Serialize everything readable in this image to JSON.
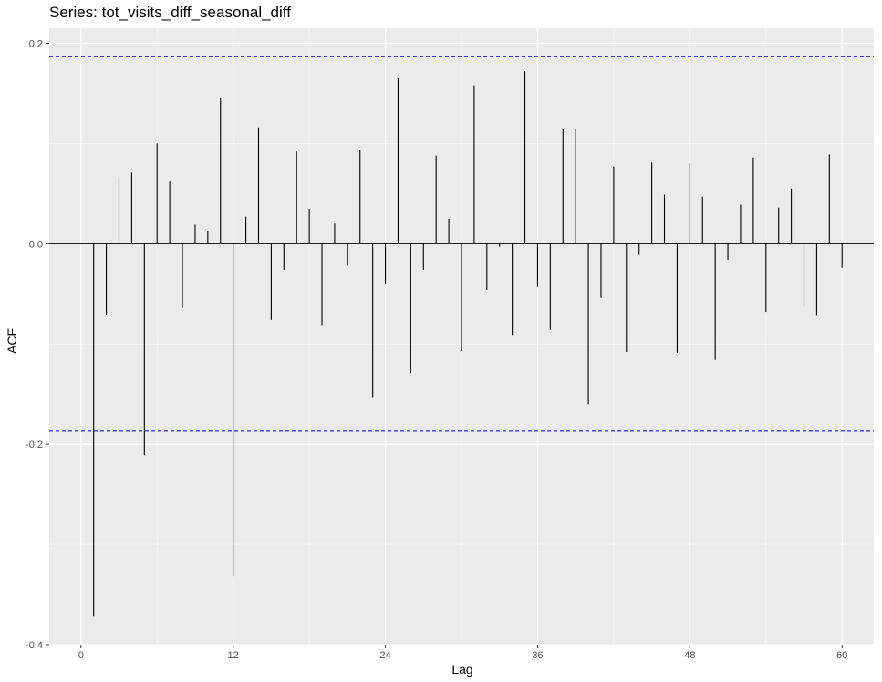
{
  "chart_data": {
    "type": "bar",
    "title": "Series: tot_visits_diff_seasonal_diff",
    "xlabel": "Lag",
    "ylabel": "ACF",
    "xlim": [
      -2.5,
      62.5
    ],
    "ylim": [
      -0.4,
      0.215
    ],
    "x_ticks": [
      0,
      12,
      24,
      36,
      48,
      60
    ],
    "x_tick_labels": [
      "0",
      "12",
      "24",
      "36",
      "48",
      "60"
    ],
    "y_ticks": [
      -0.4,
      -0.2,
      0.0,
      0.2
    ],
    "y_tick_labels": [
      "-0.4",
      "-0.2",
      "0.0",
      "0.2"
    ],
    "grid": true,
    "confidence_bounds": [
      0.187,
      -0.187
    ],
    "colors": {
      "panel": "#ebebeb",
      "grid_major": "#ffffff",
      "bars": "#000000",
      "confidence": "#0000cc",
      "zero_line": "#000000"
    },
    "lags": [
      1,
      2,
      3,
      4,
      5,
      6,
      7,
      8,
      9,
      10,
      11,
      12,
      13,
      14,
      15,
      16,
      17,
      18,
      19,
      20,
      21,
      22,
      23,
      24,
      25,
      26,
      27,
      28,
      29,
      30,
      31,
      32,
      33,
      34,
      35,
      36,
      37,
      38,
      39,
      40,
      41,
      42,
      43,
      44,
      45,
      46,
      47,
      48,
      49,
      50,
      51,
      52,
      53,
      54,
      55,
      56,
      57,
      58,
      59,
      60
    ],
    "values": [
      -0.372,
      -0.071,
      0.067,
      0.071,
      -0.211,
      0.1,
      0.062,
      -0.064,
      0.019,
      0.013,
      0.146,
      -0.332,
      0.027,
      0.116,
      -0.076,
      -0.026,
      0.092,
      0.035,
      -0.082,
      0.02,
      -0.022,
      0.094,
      -0.153,
      -0.04,
      0.166,
      -0.129,
      -0.026,
      0.088,
      0.025,
      -0.107,
      0.158,
      -0.046,
      -0.003,
      -0.091,
      0.172,
      -0.043,
      -0.086,
      0.114,
      0.115,
      -0.16,
      -0.054,
      0.077,
      -0.108,
      -0.011,
      0.081,
      0.049,
      -0.109,
      0.08,
      0.047,
      -0.116,
      -0.016,
      0.039,
      0.086,
      -0.068,
      0.036,
      0.055,
      -0.063,
      -0.072,
      0.089,
      -0.024
    ]
  }
}
